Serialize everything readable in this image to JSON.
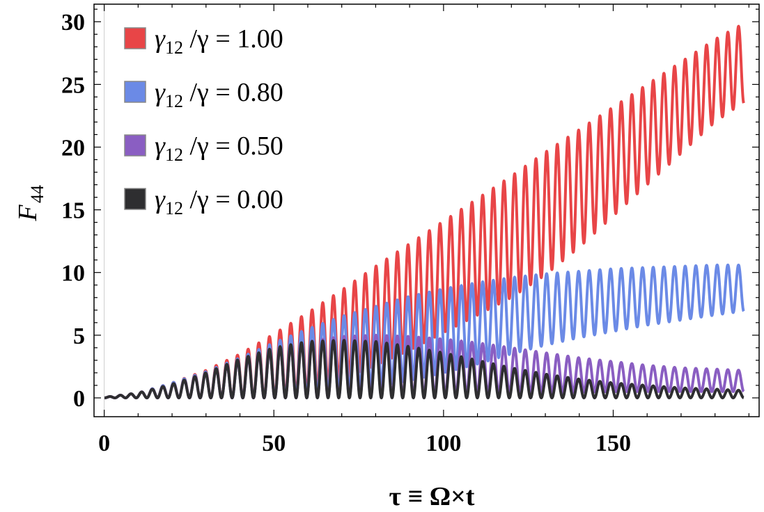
{
  "chart_data": {
    "type": "line",
    "xlabel": "τ ≡ Ω×t",
    "ylabel_main": "F",
    "ylabel_sub": "44",
    "xlim": [
      -3,
      193
    ],
    "ylim": [
      -1.5,
      31.4
    ],
    "x_ticks": [
      0,
      50,
      100,
      150
    ],
    "x_tick_labels": [
      "0",
      "50",
      "100",
      "150"
    ],
    "y_ticks": [
      0,
      5,
      10,
      15,
      20,
      25,
      30
    ],
    "y_tick_labels": [
      "0",
      "5",
      "10",
      "15",
      "20",
      "25",
      "30"
    ],
    "grid": false,
    "legend_position": "top-left",
    "oscillation_period": 3.1416,
    "x_max": 188.5,
    "series": [
      {
        "name_prefix": "γ",
        "name_sub": "12",
        "name_suffix": "/γ = 1.00",
        "color": "#e84547",
        "envelope_x": [
          0,
          10,
          20,
          30,
          40,
          50,
          60,
          70,
          80,
          90,
          100,
          110,
          120,
          130,
          140,
          150,
          160,
          170,
          180,
          188
        ],
        "envelope_max": [
          0.05,
          0.4,
          1.2,
          2.2,
          3.5,
          5.1,
          6.8,
          8.6,
          10.5,
          12.3,
          14.1,
          15.9,
          17.7,
          19.6,
          21.4,
          23.2,
          25.0,
          26.8,
          28.6,
          29.8
        ],
        "envelope_min": [
          0,
          0,
          0,
          0,
          0,
          0,
          0.5,
          1.5,
          2.6,
          3.8,
          5.2,
          6.6,
          8.0,
          9.8,
          12.0,
          14.5,
          17.0,
          19.5,
          22.0,
          23.5
        ]
      },
      {
        "name_prefix": "γ",
        "name_sub": "12",
        "name_suffix": "/γ = 0.80",
        "color": "#6b8ae6",
        "envelope_x": [
          0,
          10,
          20,
          30,
          40,
          50,
          60,
          70,
          80,
          90,
          100,
          110,
          120,
          130,
          140,
          150,
          160,
          170,
          180,
          188
        ],
        "envelope_max": [
          0.05,
          0.4,
          1.2,
          2.1,
          3.2,
          4.4,
          5.5,
          6.5,
          7.3,
          8.1,
          8.7,
          9.2,
          9.6,
          9.9,
          10.1,
          10.3,
          10.4,
          10.5,
          10.6,
          10.6
        ],
        "envelope_min": [
          0,
          0,
          0,
          0,
          0,
          0,
          0.2,
          0.5,
          0.9,
          1.4,
          2.0,
          2.7,
          3.5,
          4.2,
          4.8,
          5.3,
          5.8,
          6.2,
          6.6,
          6.9
        ]
      },
      {
        "name_prefix": "γ",
        "name_sub": "12",
        "name_suffix": "/γ = 0.50",
        "color": "#8a5ec2",
        "envelope_x": [
          0,
          10,
          20,
          30,
          40,
          50,
          60,
          70,
          80,
          90,
          100,
          110,
          120,
          130,
          140,
          150,
          160,
          170,
          180,
          188
        ],
        "envelope_max": [
          0.05,
          0.4,
          1.1,
          2.0,
          3.0,
          3.9,
          4.5,
          4.9,
          5.0,
          4.9,
          4.7,
          4.4,
          4.0,
          3.6,
          3.2,
          2.9,
          2.6,
          2.4,
          2.3,
          2.2
        ],
        "envelope_min": [
          0,
          0,
          0,
          0,
          0,
          0,
          0,
          0.05,
          0.1,
          0.15,
          0.2,
          0.3,
          0.35,
          0.4,
          0.45,
          0.5,
          0.5,
          0.5,
          0.5,
          0.5
        ]
      },
      {
        "name_prefix": "γ",
        "name_sub": "12",
        "name_suffix": "/γ = 0.00",
        "color": "#2e2e30",
        "envelope_x": [
          0,
          10,
          20,
          30,
          40,
          50,
          60,
          70,
          80,
          90,
          100,
          110,
          120,
          130,
          140,
          150,
          160,
          170,
          180,
          188
        ],
        "envelope_max": [
          0.05,
          0.4,
          1.1,
          2.0,
          3.1,
          4.0,
          4.5,
          4.6,
          4.5,
          4.1,
          3.6,
          3.0,
          2.4,
          1.9,
          1.5,
          1.2,
          1.0,
          0.8,
          0.7,
          0.6
        ],
        "envelope_min": [
          0,
          0,
          0,
          0,
          0,
          0,
          0,
          0,
          0,
          0,
          0,
          0,
          0,
          0,
          0,
          0,
          0,
          0,
          0,
          0
        ]
      }
    ]
  }
}
